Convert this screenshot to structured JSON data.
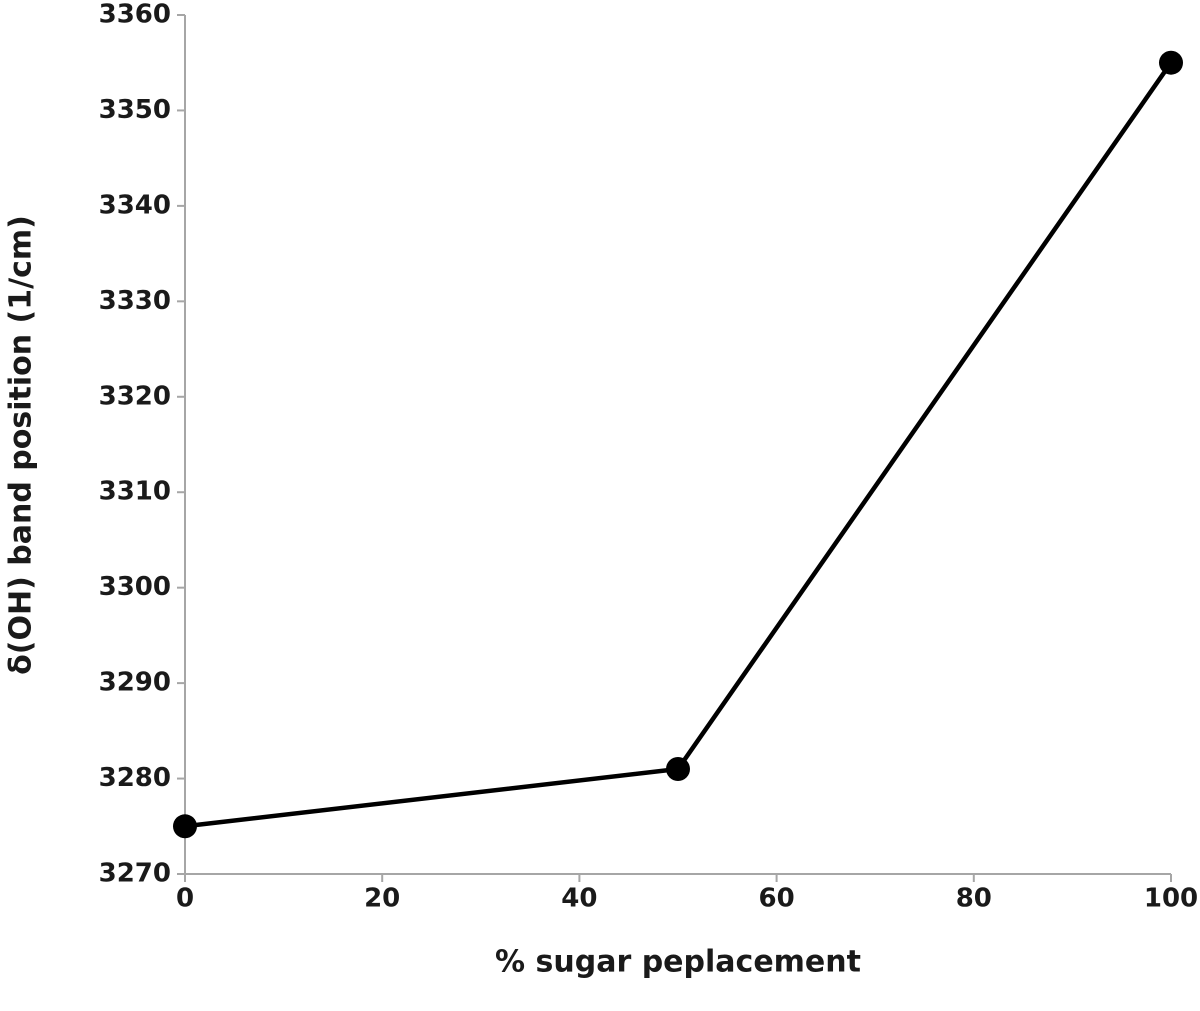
{
  "chart_data": {
    "type": "line",
    "x_label": "% sugar peplacement",
    "y_label": "δ(OH) band position (1/cm)",
    "series": [
      {
        "color": "#000000",
        "x": [
          0,
          50,
          100
        ],
        "values": [
          3275,
          3281,
          3355
        ]
      }
    ],
    "xlim": [
      0,
      100
    ],
    "xticks": [
      0,
      20,
      40,
      60,
      80,
      100
    ],
    "ylim": [
      3270,
      3360
    ],
    "yticks": [
      3270,
      3280,
      3290,
      3300,
      3310,
      3320,
      3330,
      3340,
      3350,
      3360
    ],
    "markers": true
  }
}
